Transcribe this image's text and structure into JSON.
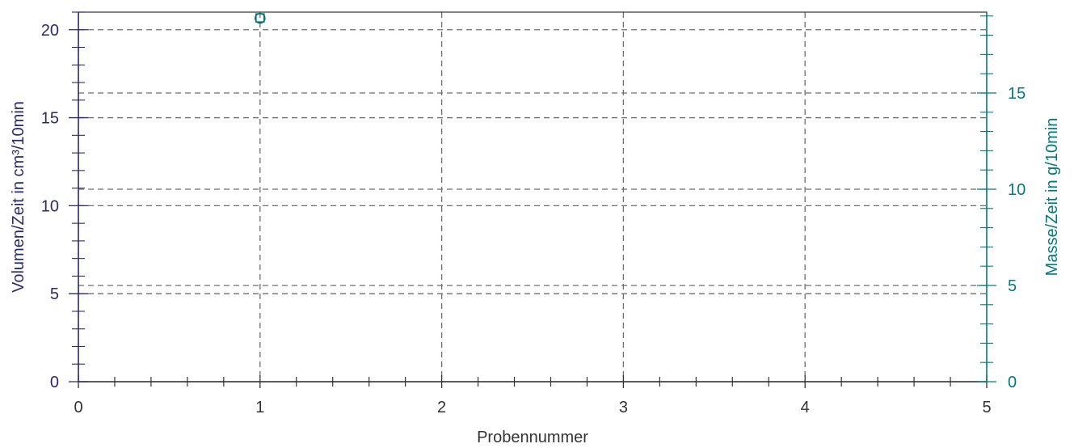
{
  "colors": {
    "left_axis": "#2a2a6a",
    "right_axis": "#007a80",
    "x_axis": "#333333",
    "grid": "#6e6e6e",
    "frame": "#333333",
    "series_1": "#2a5a7a",
    "series_2": "#007a80"
  },
  "chart_data": {
    "type": "scatter",
    "title": "",
    "xlabel": "Probennummer",
    "ylabel_left": "Volumen/Zeit in cm³/10min",
    "ylabel_right": "Masse/Zeit in g/10min",
    "xlim": [
      0,
      5
    ],
    "ylim_left": [
      0,
      21
    ],
    "ylim_right": [
      0,
      19.2
    ],
    "x_ticks": [
      "0",
      "1",
      "2",
      "3",
      "4",
      "5"
    ],
    "y_left_ticks": [
      "0",
      "5",
      "10",
      "15",
      "20"
    ],
    "y_right_ticks": [
      "0",
      "5",
      "10",
      "15"
    ],
    "grid": true,
    "legend": "none",
    "series": [
      {
        "axis": "left",
        "marker": "circle",
        "points": [
          {
            "x": 1,
            "y": 20.65
          }
        ]
      },
      {
        "axis": "right",
        "marker": "square",
        "points": [
          {
            "x": 1,
            "y": 18.9
          }
        ]
      }
    ]
  }
}
